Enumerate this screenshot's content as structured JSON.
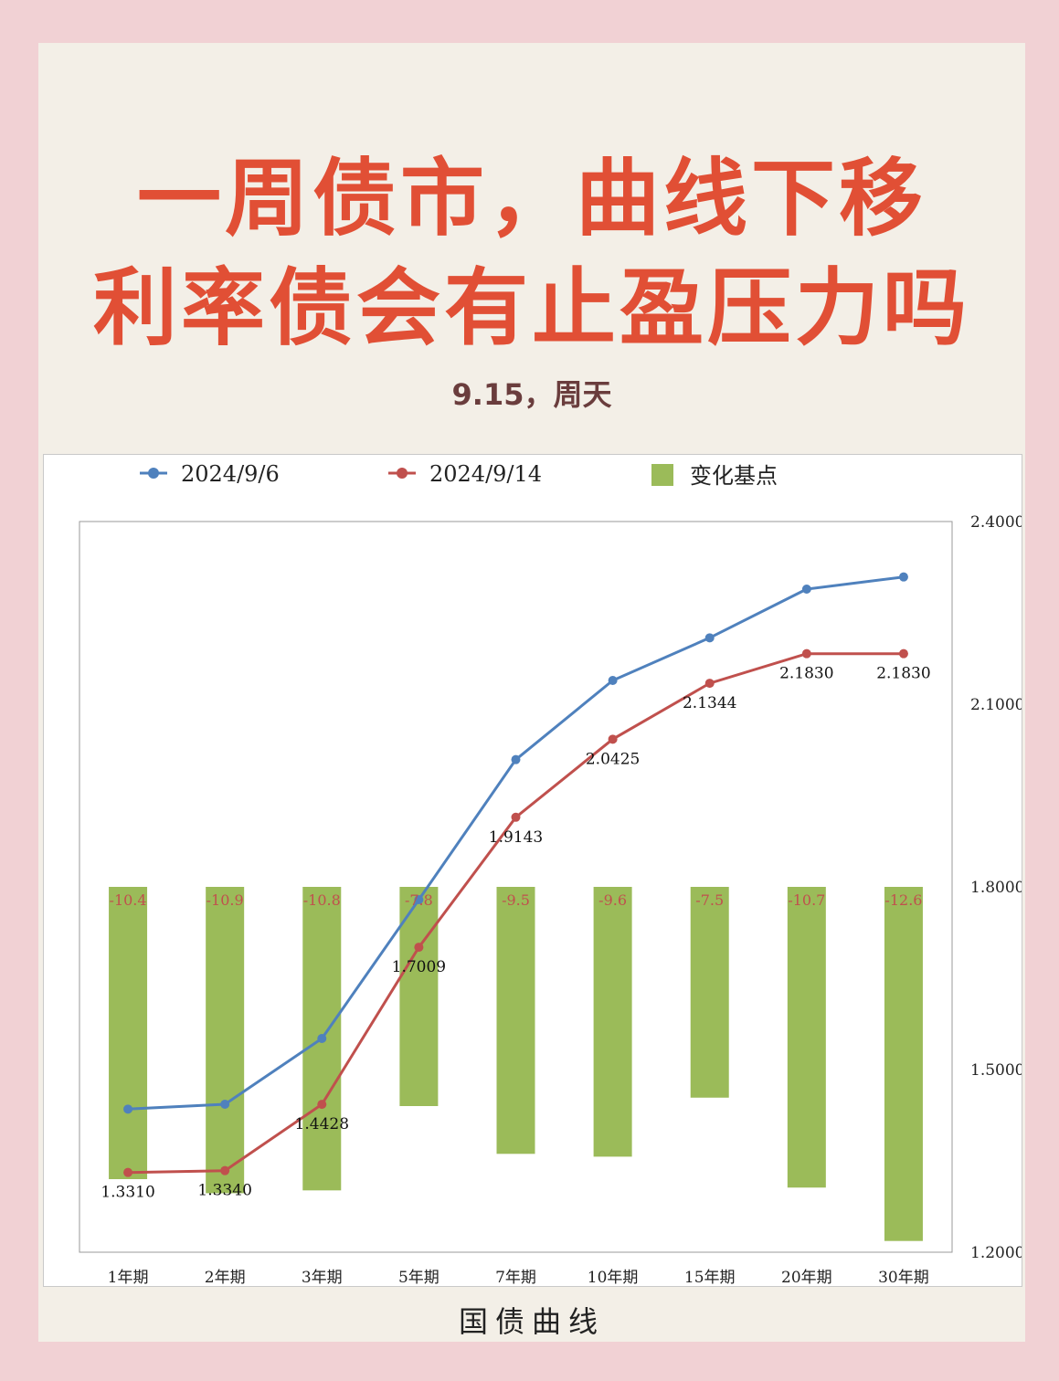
{
  "headline": {
    "line1": "一周债市，曲线下移",
    "line2": "利率债会有止盈压力吗",
    "date": "9.15，周天"
  },
  "colors": {
    "series_a": "#4f81bd",
    "series_b": "#c0504d",
    "bars": "#9bbb59",
    "bar_labels": "#c0504d",
    "headline": "#e14f35",
    "card_bg": "#f3efe7",
    "page_bg": "#f1d1d4"
  },
  "chart_data": {
    "type": "line",
    "title": "国债曲线",
    "categories": [
      "1年期",
      "2年期",
      "3年期",
      "5年期",
      "7年期",
      "10年期",
      "15年期",
      "20年期",
      "30年期"
    ],
    "y2lim": [
      1.2,
      2.4
    ],
    "y2ticks": [
      "2.4000",
      "2.1000",
      "1.8000",
      "1.5000",
      "1.2000"
    ],
    "y2tick_values": [
      2.4,
      2.1,
      1.8,
      1.5,
      1.2
    ],
    "bar_baseline": 1.8,
    "grid": false,
    "legend_position": "top",
    "series": [
      {
        "name": "2024/9/6",
        "type": "line",
        "values": [
          1.435,
          1.443,
          1.551,
          1.779,
          2.009,
          2.139,
          2.209,
          2.289,
          2.309
        ]
      },
      {
        "name": "2024/9/14",
        "type": "line",
        "values": [
          1.331,
          1.334,
          1.4428,
          1.7009,
          1.9143,
          2.0425,
          2.1344,
          2.183,
          2.183
        ],
        "labels": [
          "1.3310",
          "1.3340",
          "1.4428",
          "1.7009",
          "1.9143",
          "2.0425",
          "2.1344",
          "2.1830",
          "2.1830"
        ]
      },
      {
        "name": "变化基点",
        "type": "bar",
        "values": [
          -10.4,
          -10.9,
          -10.8,
          -7.8,
          -9.5,
          -9.6,
          -7.5,
          -10.7,
          -12.6
        ],
        "labels": [
          "-10.4",
          "-10.9",
          "-10.8",
          "-7.8",
          "-9.5",
          "-9.6",
          "-7.5",
          "-10.7",
          "-12.6"
        ]
      }
    ]
  }
}
